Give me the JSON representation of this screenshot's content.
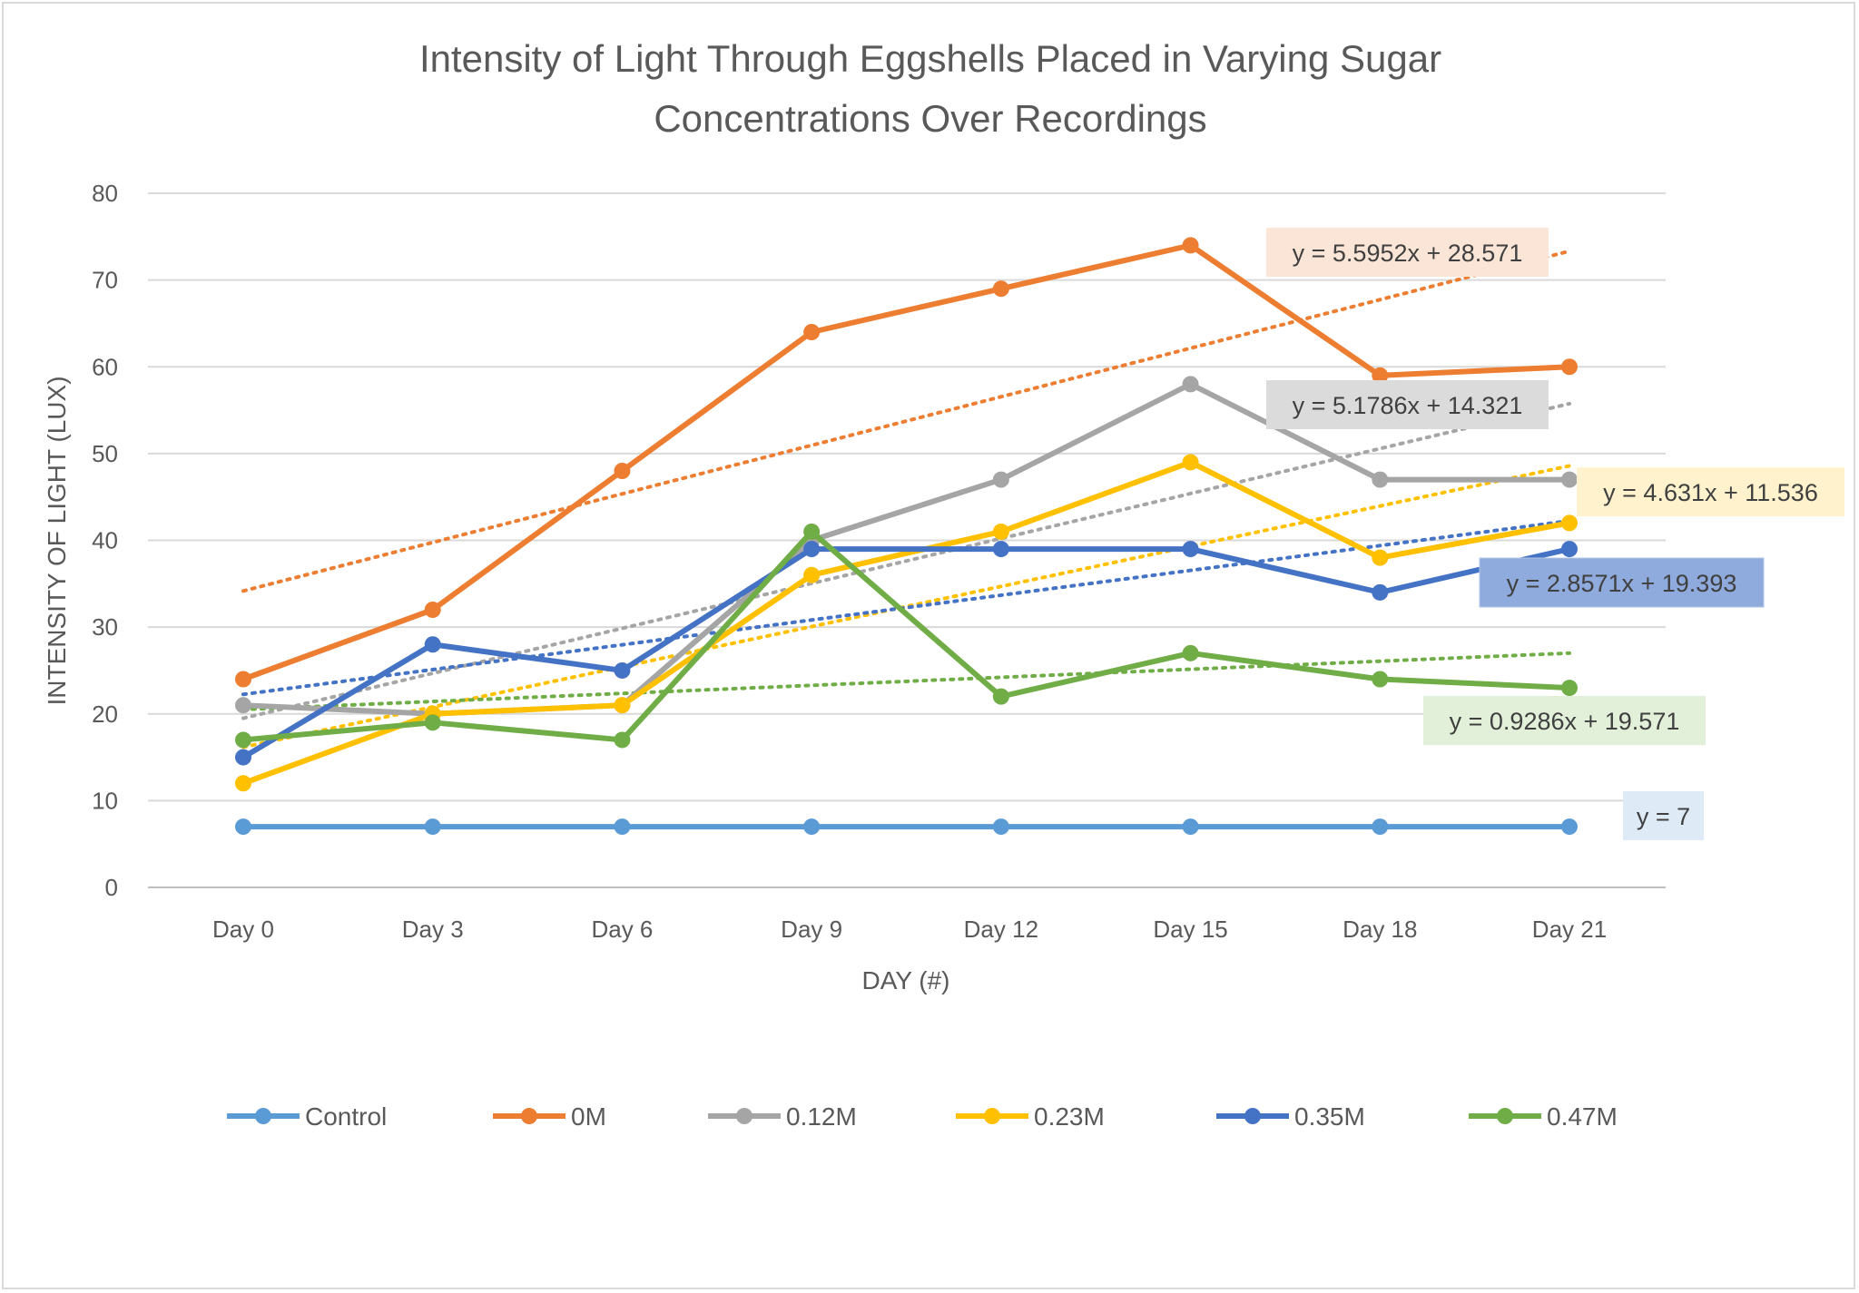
{
  "chart_data": {
    "type": "line",
    "title": "Intensity of Light Through Eggshells Placed in Varying Sugar Concentrations Over Recordings",
    "title_lines": [
      "Intensity of Light Through Eggshells Placed in Varying Sugar",
      "Concentrations Over Recordings"
    ],
    "xlabel": "DAY (#)",
    "ylabel": "INTENSITY OF LIGHT (LUX)",
    "categories": [
      "Day 0",
      "Day 3",
      "Day 6",
      "Day 9",
      "Day 12",
      "Day 15",
      "Day 18",
      "Day 21"
    ],
    "ylim": [
      0,
      80
    ],
    "yticks": [
      0,
      10,
      20,
      30,
      40,
      50,
      60,
      70,
      80
    ],
    "grid": true,
    "legend": "bottom",
    "series": [
      {
        "name": "Control",
        "color": "#5B9BD5",
        "values": [
          7,
          7,
          7,
          7,
          7,
          7,
          7,
          7
        ],
        "trendline": {
          "slope": 0,
          "intercept": 7,
          "label": "y = 7",
          "label_bg": "#DEEBF7"
        }
      },
      {
        "name": "0M",
        "color": "#ED7D31",
        "values": [
          24,
          32,
          48,
          64,
          69,
          74,
          59,
          60
        ],
        "trendline": {
          "slope": 5.5952,
          "intercept": 28.571,
          "label": "y = 5.5952x + 28.571",
          "label_bg": "#FBE5D6"
        }
      },
      {
        "name": "0.12M",
        "color": "#A5A5A5",
        "values": [
          21,
          20,
          21,
          40,
          47,
          58,
          47,
          47
        ],
        "trendline": {
          "slope": 5.1786,
          "intercept": 14.321,
          "label": "y = 5.1786x + 14.321",
          "label_bg": "#DBDBDB"
        }
      },
      {
        "name": "0.23M",
        "color": "#FFC000",
        "values": [
          12,
          20,
          21,
          36,
          41,
          49,
          38,
          42
        ],
        "trendline": {
          "slope": 4.631,
          "intercept": 11.536,
          "label": "y = 4.631x + 11.536",
          "label_bg": "#FFF2CC"
        }
      },
      {
        "name": "0.35M",
        "color": "#4472C4",
        "values": [
          15,
          28,
          25,
          39,
          39,
          39,
          34,
          39
        ],
        "trendline": {
          "slope": 2.8571,
          "intercept": 19.393,
          "label": "y = 2.8571x + 19.393",
          "label_bg": "#8FAADC"
        }
      },
      {
        "name": "0.47M",
        "color": "#70AD47",
        "values": [
          17,
          19,
          17,
          41,
          22,
          27,
          24,
          23
        ],
        "trendline": {
          "slope": 0.9286,
          "intercept": 19.571,
          "label": "y = 0.9286x + 19.571",
          "label_bg": "#E2F0D9"
        }
      }
    ]
  }
}
